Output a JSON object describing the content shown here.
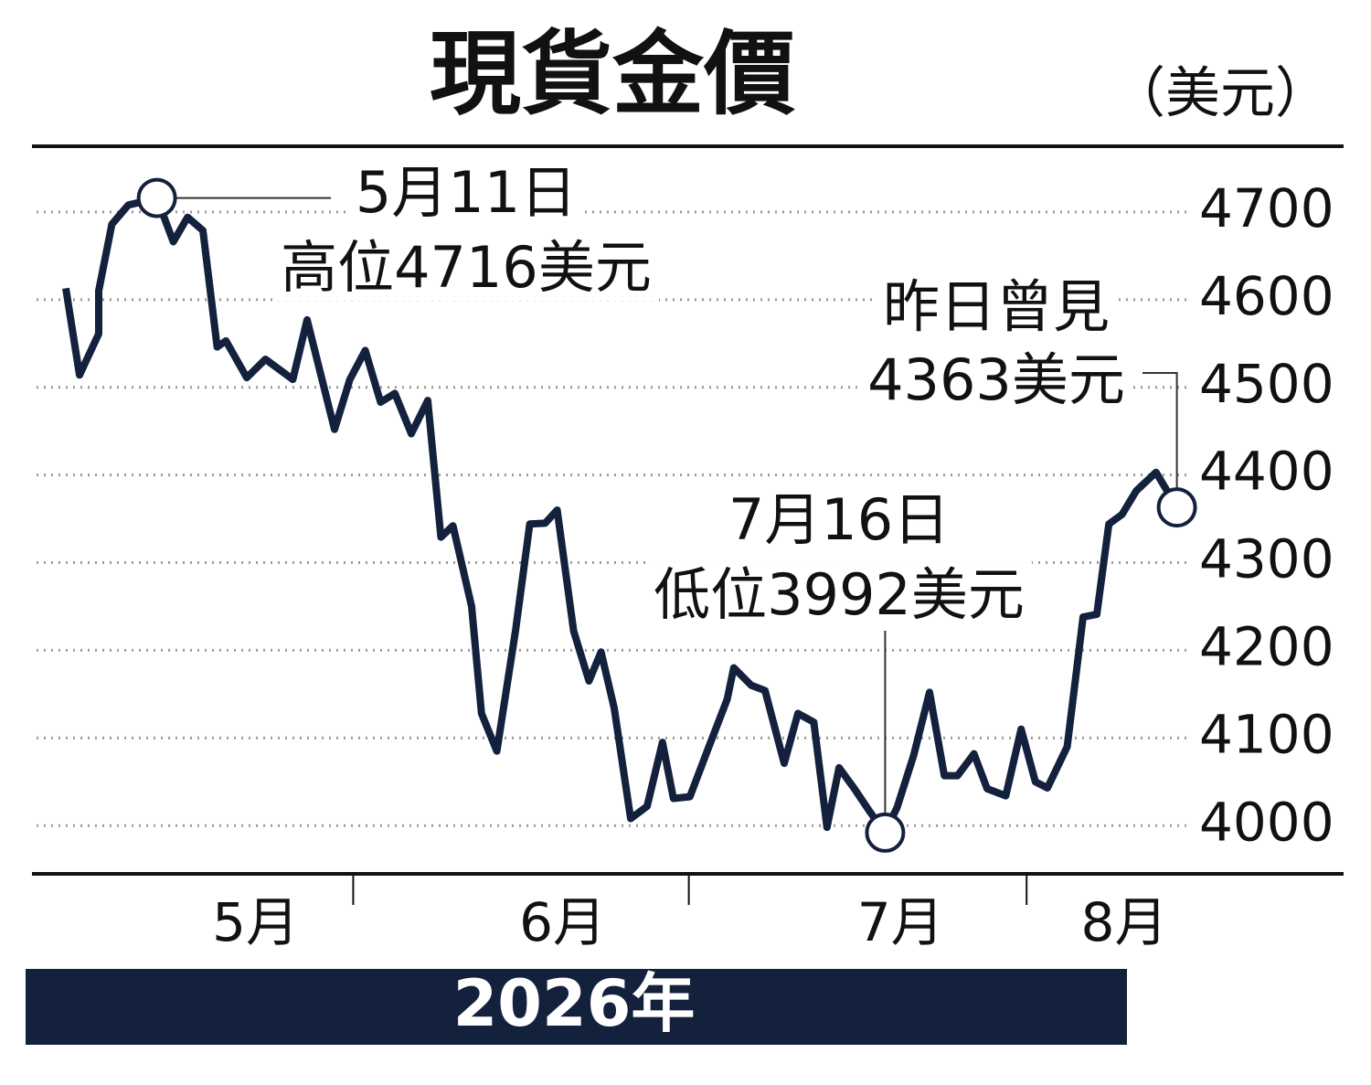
{
  "chart_data": {
    "type": "line",
    "title": "現貨金價",
    "unit": "（美元）",
    "year_label": "2026年",
    "color": "#13213d",
    "x": [
      0,
      1.25,
      3,
      3,
      4.2,
      5.7,
      7.1,
      8.3,
      9.8,
      11.1,
      12.5,
      13.8,
      14.6,
      16.5,
      18.2,
      20.7,
      22,
      24.5,
      25.9,
      27.3,
      28.7,
      30,
      31.5,
      33,
      34.2,
      35.3,
      37,
      37.9,
      39.3,
      41,
      42.3,
      43.7,
      44.8,
      46.3,
      47.7,
      48.8,
      50,
      51.5,
      53,
      54.4,
      55.4,
      56.9,
      58.6,
      60.3,
      60.9,
      62.5,
      63.75,
      65.5,
      66.75,
      68.2,
      69.4,
      70.5,
      71.9,
      73.3,
      74.7,
      75.8,
      77.3,
      78.75,
      80.1,
      81.3,
      82.8,
      84,
      85.7,
      87.1,
      88.4,
      89.5,
      91.3,
      92.75,
      94,
      95.1,
      96.3,
      97.6,
      99.4,
      101.3
    ],
    "values": [
      4613,
      4514,
      4561,
      4610,
      4686,
      4708,
      4712,
      4716,
      4666,
      4694,
      4679,
      4546,
      4553,
      4511,
      4532,
      4509,
      4577,
      4452,
      4509,
      4542,
      4483,
      4493,
      4447,
      4485,
      4329,
      4342,
      4250,
      4128,
      4085,
      4222,
      4344,
      4345,
      4360,
      4222,
      4165,
      4198,
      4134,
      4008,
      4022,
      4095,
      4031,
      4033,
      4089,
      4144,
      4180,
      4160,
      4154,
      4071,
      4128,
      4118,
      3998,
      4066,
      4042,
      4016,
      3992,
      4021,
      4080,
      4152,
      4057,
      4057,
      4082,
      4042,
      4034,
      4110,
      4050,
      4043,
      4090,
      4238,
      4241,
      4344,
      4355,
      4382,
      4403,
      4363
    ],
    "xlim": [
      -2.67,
      116.5
    ],
    "xticks": [
      {
        "value": 17.3,
        "label": "5月"
      },
      {
        "value": 45.3,
        "label": "6月"
      },
      {
        "value": 76.1,
        "label": "7月"
      },
      {
        "value": 96.5,
        "label": "8月"
      }
    ],
    "xticks_minor": [
      26.2,
      56.8,
      87.6
    ],
    "ylim": [
      3946,
      4775
    ],
    "yticks": [
      4000,
      4100,
      4200,
      4300,
      4400,
      4500,
      4600,
      4700
    ],
    "grid": true,
    "annotations": [
      {
        "lines": [
          "5月11日",
          "高位4716美元"
        ],
        "point": 7
      },
      {
        "lines": [
          "7月16日",
          "低位3992美元"
        ],
        "point": 54
      },
      {
        "lines": [
          "昨日曾見",
          "4363美元"
        ],
        "point": 73
      }
    ]
  }
}
